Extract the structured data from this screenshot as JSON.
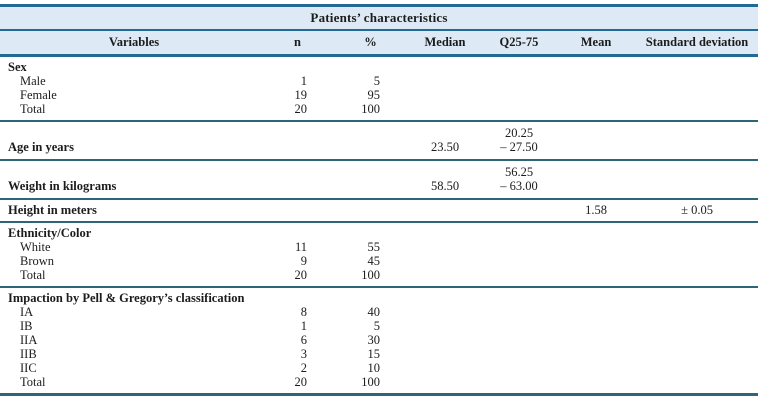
{
  "table": {
    "title": "Patients’ characteristics",
    "columns": {
      "variables": "Variables",
      "n": "n",
      "pct": "%",
      "median": "Median",
      "q25_75": "Q25-75",
      "mean": "Mean",
      "sd": "Standard deviation"
    },
    "sections": {
      "sex": {
        "label": "Sex",
        "rows": [
          {
            "variable": "Male",
            "n": "1",
            "pct": "5"
          },
          {
            "variable": "Female",
            "n": "19",
            "pct": "95"
          },
          {
            "variable": "Total",
            "n": "20",
            "pct": "100"
          }
        ]
      },
      "age": {
        "label": "Age in years",
        "median": "23.50",
        "q25_75_line1": "20.25",
        "q25_75_line2": "– 27.50"
      },
      "weight": {
        "label": "Weight in kilograms",
        "median": "58.50",
        "q25_75_line1": "56.25",
        "q25_75_line2": "– 63.00"
      },
      "height": {
        "label": "Height in meters",
        "mean": "1.58",
        "sd": "± 0.05"
      },
      "ethnicity": {
        "label": "Ethnicity/Color",
        "rows": [
          {
            "variable": "White",
            "n": "11",
            "pct": "55"
          },
          {
            "variable": "Brown",
            "n": "9",
            "pct": "45"
          },
          {
            "variable": "Total",
            "n": "20",
            "pct": "100"
          }
        ]
      },
      "impaction": {
        "label": "Impaction by Pell & Gregory’s classification",
        "rows": [
          {
            "variable": "IA",
            "n": "8",
            "pct": "40"
          },
          {
            "variable": "IB",
            "n": "1",
            "pct": "5"
          },
          {
            "variable": "IIA",
            "n": "6",
            "pct": "30"
          },
          {
            "variable": "IIB",
            "n": "3",
            "pct": "15"
          },
          {
            "variable": "IIC",
            "n": "2",
            "pct": "10"
          },
          {
            "variable": "Total",
            "n": "20",
            "pct": "100"
          }
        ]
      }
    }
  },
  "colors": {
    "header_bg": "#dde9f5",
    "rule_blue": "#226a94",
    "rule_teal": "#2e6679",
    "text": "#1c1c1c"
  }
}
